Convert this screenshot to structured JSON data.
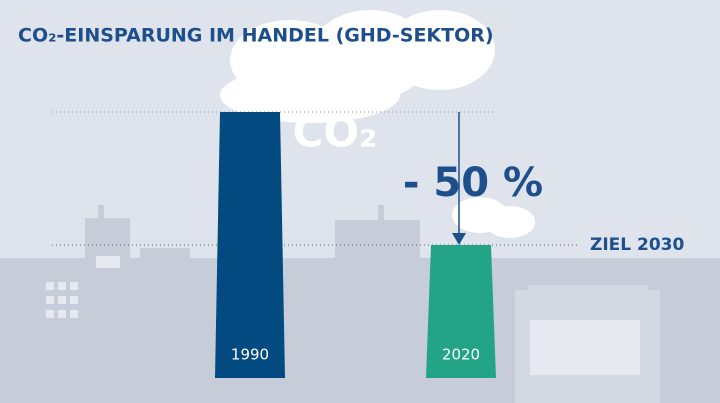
{
  "chart_data": {
    "type": "chimney",
    "title": "CO₂-EINSPARUNG IM HANDEL (GHD-SEKTOR)",
    "cloud_label": "CO₂",
    "annotation": "- 50 %",
    "categories": [
      "1990",
      "2020"
    ],
    "values": [
      100,
      50
    ],
    "colors": [
      "#024a7f",
      "#23a487"
    ],
    "ylim": [
      0,
      100
    ],
    "target": {
      "label": "ZIEL 2030",
      "value": 50
    }
  }
}
